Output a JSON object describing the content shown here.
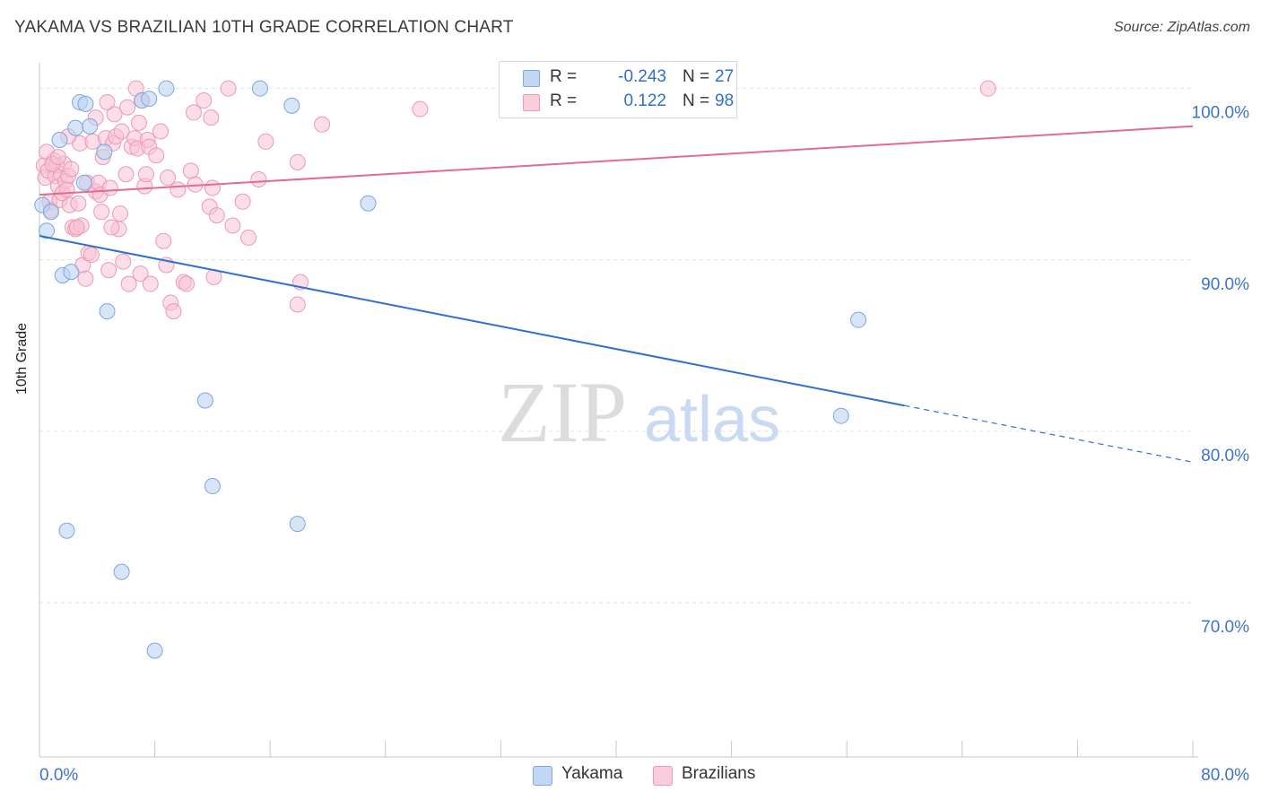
{
  "header": {
    "title": "YAKAMA VS BRAZILIAN 10TH GRADE CORRELATION CHART",
    "source": "Source: ZipAtlas.com"
  },
  "watermark": {
    "zip": "ZIP",
    "atlas": "atlas"
  },
  "legend": {
    "rows": [
      {
        "r_label": "R =",
        "r_value": "-0.243",
        "n_label": "N =",
        "n_value": "27",
        "color": "#a9c6ee"
      },
      {
        "r_label": "R =",
        "r_value": "0.122",
        "n_label": "N =",
        "n_value": "98",
        "color": "#f7b6cb"
      }
    ]
  },
  "bottom_legend": [
    {
      "label": "Yakama",
      "color": "#c3d7f4"
    },
    {
      "label": "Brazilians",
      "color": "#f9cdd9"
    }
  ],
  "colors": {
    "yakama_line": "#2f6fd0",
    "yakama_fill": "#bcd3f2",
    "yakama_stroke": "#7ea6df",
    "brazil_line": "#e46a92",
    "brazil_fill": "#f8c3d3",
    "brazil_stroke": "#ee98b4",
    "tick_label": "#3d74d0",
    "grid": "#e2e2e2"
  },
  "chart_data": {
    "type": "scatter",
    "title": "YAKAMA VS BRAZILIAN 10TH GRADE CORRELATION CHART",
    "xlabel": "",
    "ylabel": "10th Grade",
    "xlim": [
      0,
      80
    ],
    "ylim": [
      61,
      101.5
    ],
    "x_tick_labels": [
      "0.0%",
      "80.0%"
    ],
    "y_ticks": [
      70,
      80,
      90,
      100
    ],
    "y_tick_labels": [
      "70.0%",
      "80.0%",
      "90.0%",
      "100.0%"
    ],
    "grid": true,
    "series": [
      {
        "name": "Yakama",
        "r": -0.243,
        "n": 27,
        "trend": {
          "x0": 0,
          "y0": 91.4,
          "x1": 60,
          "y1": 81.5,
          "dashed_to_x": 80,
          "dashed_to_y": 78.2
        },
        "points": [
          [
            0.2,
            93.2
          ],
          [
            0.5,
            91.7
          ],
          [
            0.8,
            92.8
          ],
          [
            1.4,
            97.0
          ],
          [
            1.6,
            89.1
          ],
          [
            2.2,
            89.3
          ],
          [
            2.5,
            97.7
          ],
          [
            2.8,
            99.2
          ],
          [
            3.2,
            99.1
          ],
          [
            3.1,
            94.5
          ],
          [
            3.5,
            97.8
          ],
          [
            4.5,
            96.3
          ],
          [
            4.7,
            87.0
          ],
          [
            7.1,
            99.3
          ],
          [
            7.6,
            99.4
          ],
          [
            8.8,
            100.0
          ],
          [
            15.3,
            100.0
          ],
          [
            22.8,
            93.3
          ],
          [
            11.5,
            81.8
          ],
          [
            12.0,
            76.8
          ],
          [
            17.9,
            74.6
          ],
          [
            1.9,
            74.2
          ],
          [
            5.7,
            71.8
          ],
          [
            8.0,
            67.2
          ],
          [
            56.8,
            86.5
          ],
          [
            55.6,
            80.9
          ],
          [
            17.5,
            99.0
          ]
        ]
      },
      {
        "name": "Brazilians",
        "r": 0.122,
        "n": 98,
        "trend": {
          "x0": 0,
          "y0": 93.8,
          "x1": 80,
          "y1": 97.8
        },
        "points": [
          [
            0.3,
            95.5
          ],
          [
            0.4,
            94.8
          ],
          [
            0.6,
            95.2
          ],
          [
            0.7,
            93.4
          ],
          [
            0.8,
            92.9
          ],
          [
            1.0,
            95.8
          ],
          [
            1.1,
            94.9
          ],
          [
            1.2,
            95.5
          ],
          [
            1.3,
            94.3
          ],
          [
            1.4,
            93.5
          ],
          [
            1.5,
            95.0
          ],
          [
            1.6,
            93.9
          ],
          [
            1.7,
            95.6
          ],
          [
            1.8,
            94.6
          ],
          [
            2.0,
            94.9
          ],
          [
            2.1,
            93.2
          ],
          [
            2.2,
            95.3
          ],
          [
            2.3,
            91.9
          ],
          [
            2.5,
            91.8
          ],
          [
            2.7,
            93.3
          ],
          [
            2.8,
            96.8
          ],
          [
            2.9,
            92.0
          ],
          [
            3.0,
            89.7
          ],
          [
            3.2,
            88.9
          ],
          [
            3.3,
            94.5
          ],
          [
            3.4,
            90.4
          ],
          [
            3.6,
            90.3
          ],
          [
            3.7,
            96.9
          ],
          [
            3.9,
            94.0
          ],
          [
            4.1,
            94.5
          ],
          [
            4.2,
            93.8
          ],
          [
            4.3,
            92.8
          ],
          [
            4.4,
            96.0
          ],
          [
            4.6,
            97.1
          ],
          [
            4.7,
            99.2
          ],
          [
            4.8,
            89.4
          ],
          [
            4.9,
            94.2
          ],
          [
            5.1,
            96.8
          ],
          [
            5.2,
            98.5
          ],
          [
            5.3,
            97.2
          ],
          [
            5.5,
            91.8
          ],
          [
            5.6,
            92.7
          ],
          [
            5.7,
            97.5
          ],
          [
            5.8,
            89.9
          ],
          [
            6.0,
            95.0
          ],
          [
            6.1,
            98.9
          ],
          [
            6.2,
            88.6
          ],
          [
            6.4,
            96.6
          ],
          [
            6.6,
            97.1
          ],
          [
            6.7,
            100.0
          ],
          [
            6.8,
            96.5
          ],
          [
            7.0,
            89.2
          ],
          [
            7.1,
            99.3
          ],
          [
            7.3,
            94.3
          ],
          [
            7.4,
            95.0
          ],
          [
            7.5,
            97.0
          ],
          [
            7.6,
            96.6
          ],
          [
            7.7,
            88.6
          ],
          [
            8.1,
            96.1
          ],
          [
            8.4,
            97.5
          ],
          [
            8.6,
            91.1
          ],
          [
            8.8,
            89.7
          ],
          [
            9.1,
            87.5
          ],
          [
            9.3,
            87.0
          ],
          [
            9.6,
            94.1
          ],
          [
            10.0,
            88.7
          ],
          [
            10.2,
            88.6
          ],
          [
            10.5,
            95.2
          ],
          [
            10.8,
            94.4
          ],
          [
            11.4,
            99.3
          ],
          [
            11.8,
            93.1
          ],
          [
            12.0,
            94.2
          ],
          [
            12.3,
            92.6
          ],
          [
            11.9,
            98.3
          ],
          [
            12.1,
            89.0
          ],
          [
            13.4,
            92.0
          ],
          [
            14.5,
            91.3
          ],
          [
            15.2,
            94.7
          ],
          [
            13.1,
            100.0
          ],
          [
            15.7,
            96.9
          ],
          [
            17.9,
            95.7
          ],
          [
            17.9,
            87.4
          ],
          [
            18.1,
            88.7
          ],
          [
            19.6,
            97.9
          ],
          [
            26.4,
            98.8
          ],
          [
            65.8,
            100.0
          ],
          [
            0.5,
            96.3
          ],
          [
            1.9,
            94.1
          ],
          [
            2.6,
            91.9
          ],
          [
            3.9,
            98.3
          ],
          [
            5.0,
            91.9
          ],
          [
            0.9,
            95.6
          ],
          [
            6.9,
            98.0
          ],
          [
            1.3,
            96.0
          ],
          [
            2.0,
            97.2
          ],
          [
            8.9,
            94.8
          ],
          [
            10.7,
            98.6
          ],
          [
            14.1,
            93.4
          ]
        ]
      }
    ]
  }
}
